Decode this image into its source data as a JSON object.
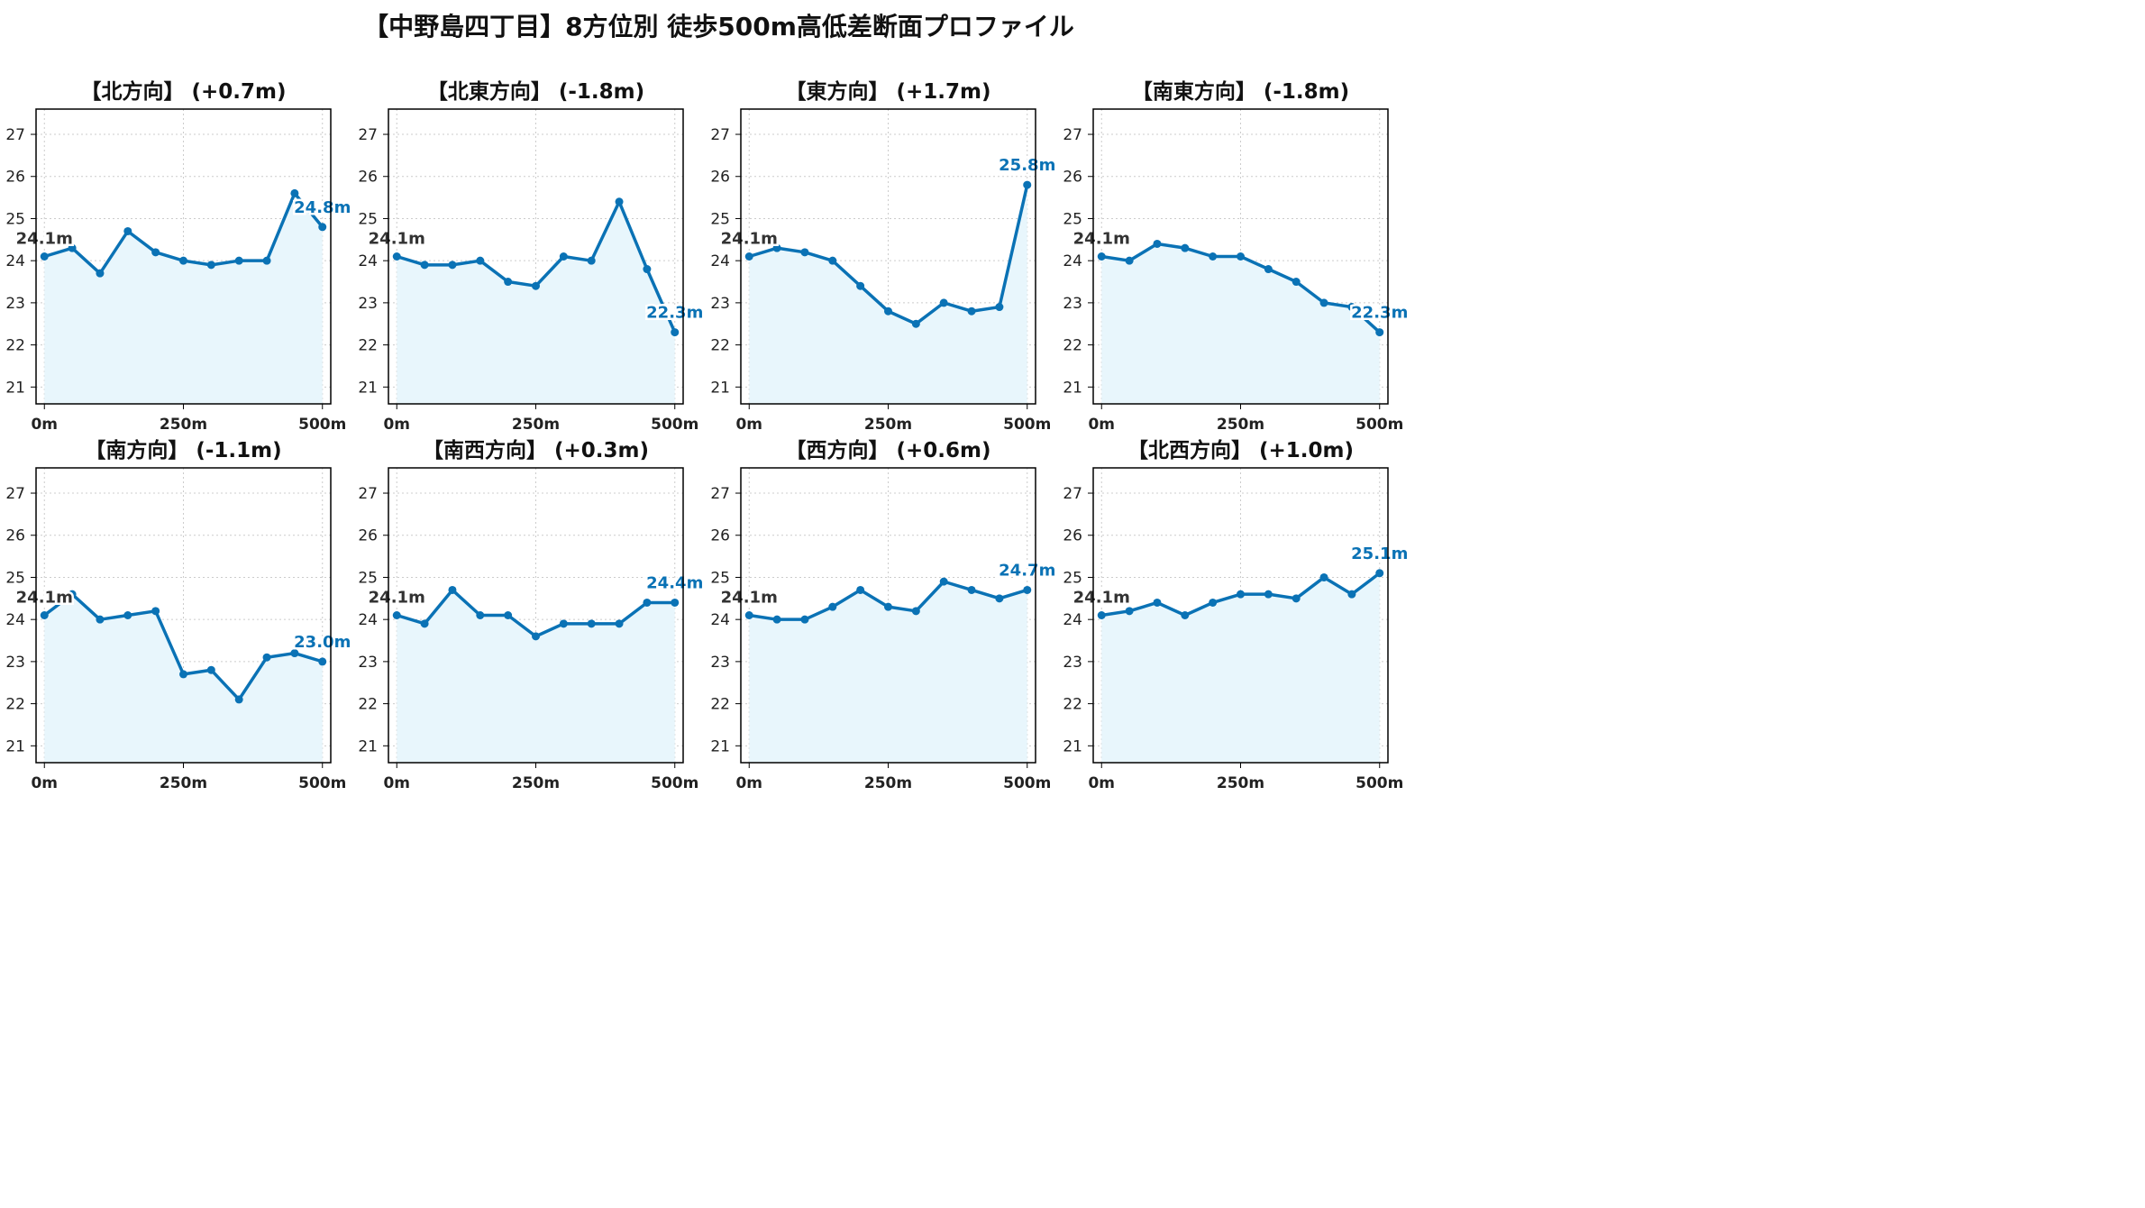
{
  "title": "【中野島四丁目】8方位別 徒歩500m高低差断面プロファイル",
  "colors": {
    "line": "#0a72b5",
    "fill": "#e8f6fc",
    "grid": "#cccccc"
  },
  "chart_data": [
    {
      "type": "line",
      "title": "【北方向】 (+0.7m)",
      "x": [
        0,
        50,
        100,
        150,
        200,
        250,
        300,
        350,
        400,
        450,
        500
      ],
      "values": [
        24.1,
        24.3,
        23.7,
        24.7,
        24.2,
        24.0,
        23.9,
        24.0,
        24.0,
        25.6,
        24.8
      ],
      "start_label": "24.1m",
      "end_label": "24.8m",
      "xticks": [
        "0m",
        "250m",
        "500m"
      ],
      "yticks": [
        "21",
        "22",
        "23",
        "24",
        "25",
        "26",
        "27"
      ],
      "xlim": [
        -15,
        515
      ],
      "ylim": [
        20.6,
        27.6
      ],
      "grid": true
    },
    {
      "type": "line",
      "title": "【北東方向】 (-1.8m)",
      "x": [
        0,
        50,
        100,
        150,
        200,
        250,
        300,
        350,
        400,
        450,
        500
      ],
      "values": [
        24.1,
        23.9,
        23.9,
        24.0,
        23.5,
        23.4,
        24.1,
        24.0,
        25.4,
        23.8,
        22.3
      ],
      "start_label": "24.1m",
      "end_label": "22.3m",
      "xticks": [
        "0m",
        "250m",
        "500m"
      ],
      "yticks": [
        "21",
        "22",
        "23",
        "24",
        "25",
        "26",
        "27"
      ],
      "xlim": [
        -15,
        515
      ],
      "ylim": [
        20.6,
        27.6
      ],
      "grid": true
    },
    {
      "type": "line",
      "title": "【東方向】 (+1.7m)",
      "x": [
        0,
        50,
        100,
        150,
        200,
        250,
        300,
        350,
        400,
        450,
        500
      ],
      "values": [
        24.1,
        24.3,
        24.2,
        24.0,
        23.4,
        22.8,
        22.5,
        23.0,
        22.8,
        22.9,
        25.8
      ],
      "start_label": "24.1m",
      "end_label": "25.8m",
      "xticks": [
        "0m",
        "250m",
        "500m"
      ],
      "yticks": [
        "21",
        "22",
        "23",
        "24",
        "25",
        "26",
        "27"
      ],
      "xlim": [
        -15,
        515
      ],
      "ylim": [
        20.6,
        27.6
      ],
      "grid": true
    },
    {
      "type": "line",
      "title": "【南東方向】 (-1.8m)",
      "x": [
        0,
        50,
        100,
        150,
        200,
        250,
        300,
        350,
        400,
        450,
        500
      ],
      "values": [
        24.1,
        24.0,
        24.4,
        24.3,
        24.1,
        24.1,
        23.8,
        23.5,
        23.0,
        22.9,
        22.3
      ],
      "start_label": "24.1m",
      "end_label": "22.3m",
      "xticks": [
        "0m",
        "250m",
        "500m"
      ],
      "yticks": [
        "21",
        "22",
        "23",
        "24",
        "25",
        "26",
        "27"
      ],
      "xlim": [
        -15,
        515
      ],
      "ylim": [
        20.6,
        27.6
      ],
      "grid": true
    },
    {
      "type": "line",
      "title": "【南方向】 (-1.1m)",
      "x": [
        0,
        50,
        100,
        150,
        200,
        250,
        300,
        350,
        400,
        450,
        500
      ],
      "values": [
        24.1,
        24.6,
        24.0,
        24.1,
        24.2,
        22.7,
        22.8,
        22.1,
        23.1,
        23.2,
        23.0
      ],
      "start_label": "24.1m",
      "end_label": "23.0m",
      "xticks": [
        "0m",
        "250m",
        "500m"
      ],
      "yticks": [
        "21",
        "22",
        "23",
        "24",
        "25",
        "26",
        "27"
      ],
      "xlim": [
        -15,
        515
      ],
      "ylim": [
        20.6,
        27.6
      ],
      "grid": true
    },
    {
      "type": "line",
      "title": "【南西方向】 (+0.3m)",
      "x": [
        0,
        50,
        100,
        150,
        200,
        250,
        300,
        350,
        400,
        450,
        500
      ],
      "values": [
        24.1,
        23.9,
        24.7,
        24.1,
        24.1,
        23.6,
        23.9,
        23.9,
        23.9,
        24.4,
        24.4
      ],
      "start_label": "24.1m",
      "end_label": "24.4m",
      "xticks": [
        "0m",
        "250m",
        "500m"
      ],
      "yticks": [
        "21",
        "22",
        "23",
        "24",
        "25",
        "26",
        "27"
      ],
      "xlim": [
        -15,
        515
      ],
      "ylim": [
        20.6,
        27.6
      ],
      "grid": true
    },
    {
      "type": "line",
      "title": "【西方向】 (+0.6m)",
      "x": [
        0,
        50,
        100,
        150,
        200,
        250,
        300,
        350,
        400,
        450,
        500
      ],
      "values": [
        24.1,
        24.0,
        24.0,
        24.3,
        24.7,
        24.3,
        24.2,
        24.9,
        24.7,
        24.5,
        24.7
      ],
      "start_label": "24.1m",
      "end_label": "24.7m",
      "xticks": [
        "0m",
        "250m",
        "500m"
      ],
      "yticks": [
        "21",
        "22",
        "23",
        "24",
        "25",
        "26",
        "27"
      ],
      "xlim": [
        -15,
        515
      ],
      "ylim": [
        20.6,
        27.6
      ],
      "grid": true
    },
    {
      "type": "line",
      "title": "【北西方向】 (+1.0m)",
      "x": [
        0,
        50,
        100,
        150,
        200,
        250,
        300,
        350,
        400,
        450,
        500
      ],
      "values": [
        24.1,
        24.2,
        24.4,
        24.1,
        24.4,
        24.6,
        24.6,
        24.5,
        25.0,
        24.6,
        25.1
      ],
      "start_label": "24.1m",
      "end_label": "25.1m",
      "xticks": [
        "0m",
        "250m",
        "500m"
      ],
      "yticks": [
        "21",
        "22",
        "23",
        "24",
        "25",
        "26",
        "27"
      ],
      "xlim": [
        -15,
        515
      ],
      "ylim": [
        20.6,
        27.6
      ],
      "grid": true
    }
  ]
}
